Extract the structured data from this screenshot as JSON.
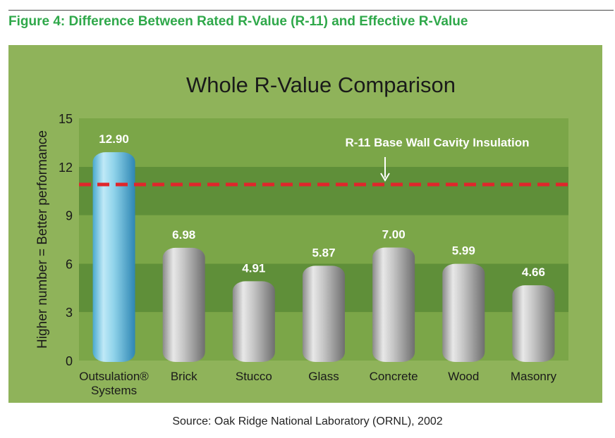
{
  "figure": {
    "title": "Figure 4: Difference Between Rated R-Value (R-11) and Effective R-Value",
    "source": "Source: Oak Ridge National Laboratory (ORNL), 2002"
  },
  "colors": {
    "figure_title": "#2fa84a",
    "panel_background": "#8fb35a",
    "band_dark": "#5f8f39",
    "band_light": "#7ba648",
    "reference_line": "#e0262b",
    "highlight_bar": "#8fd3ea",
    "standard_bar": "#b9b9b9"
  },
  "chart_data": {
    "type": "bar",
    "title": "Whole R-Value Comparison",
    "ylabel": "Higher number = Better performance",
    "xlabel": "",
    "ylim": [
      0,
      15
    ],
    "yticks": [
      0,
      3,
      6,
      9,
      12,
      15
    ],
    "categories": [
      "Outsulation® Systems",
      "Brick",
      "Stucco",
      "Glass",
      "Concrete",
      "Wood",
      "Masonry"
    ],
    "values": [
      12.9,
      6.98,
      4.91,
      5.87,
      7.0,
      5.99,
      4.66
    ],
    "value_labels": [
      "12.90",
      "6.98",
      "4.91",
      "5.87",
      "7.00",
      "5.99",
      "4.66"
    ],
    "highlighted_category": "Outsulation® Systems",
    "reference_line": {
      "value": 10.9,
      "label": "R-11 Base Wall Cavity Insulation",
      "style": "dashed"
    },
    "grid": "alternating horizontal bands",
    "legend": "none"
  }
}
